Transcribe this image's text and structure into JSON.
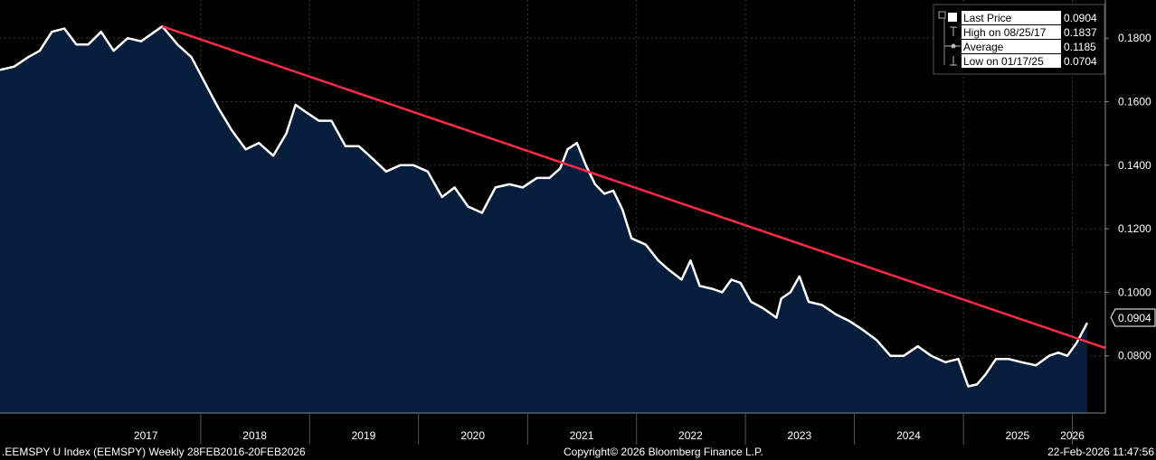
{
  "footer": {
    "left": ".EEMSPY U Index (EEMSPY) Weekly 28FEB2016-20FEB2026",
    "center": "Copyright© 2026 Bloomberg Finance L.P.",
    "right": "22-Feb-2026 11:47:56"
  },
  "legend": [
    {
      "label": "Last Price",
      "value": "0.0904",
      "marker": "filled-square"
    },
    {
      "label": "High on 08/25/17",
      "value": "0.1837",
      "marker": "high-marker"
    },
    {
      "label": "Average",
      "value": "0.1185",
      "marker": "average-marker"
    },
    {
      "label": "Low on 01/17/25",
      "value": "0.0704",
      "marker": "low-marker"
    }
  ],
  "last_price_tag": "0.0904",
  "colors": {
    "background": "#000000",
    "area_fill": "#061e3c",
    "price_line": "#ffffff",
    "trend_line": "#ff2a48",
    "grid": "#3a3a3a",
    "axis": "#888888"
  },
  "chart_data": {
    "type": "area",
    "title": "",
    "xlabel": "",
    "ylabel": "",
    "x_range": [
      "2016-02-28",
      "2026-02-20"
    ],
    "ylim": [
      0.062,
      0.192
    ],
    "y_ticks": [
      0.08,
      0.1,
      0.12,
      0.14,
      0.16,
      0.18
    ],
    "y_tick_labels": [
      "0.0800",
      "0.1000",
      "0.1200",
      "0.1400",
      "0.1600",
      "0.1800"
    ],
    "x_tick_labels": [
      "2017",
      "2018",
      "2019",
      "2020",
      "2021",
      "2022",
      "2023",
      "2024",
      "2025",
      "2026"
    ],
    "x_tick_positions": [
      "2017-07-01",
      "2018-07-01",
      "2019-07-01",
      "2020-07-01",
      "2021-07-01",
      "2022-07-01",
      "2023-07-01",
      "2024-07-01",
      "2025-07-01",
      "2026-01-01"
    ],
    "year_boundaries": [
      "2018-01-01",
      "2019-01-01",
      "2020-01-01",
      "2021-01-01",
      "2022-01-01",
      "2023-01-01",
      "2024-01-01",
      "2025-01-01",
      "2026-01-01"
    ],
    "grid": true,
    "legend_position": "top-right",
    "series": [
      {
        "name": "Last Price",
        "points": [
          [
            "2016-02-28",
            0.17
          ],
          [
            "2016-04-15",
            0.171
          ],
          [
            "2016-06-01",
            0.174
          ],
          [
            "2016-07-10",
            0.176
          ],
          [
            "2016-08-20",
            0.182
          ],
          [
            "2016-10-01",
            0.183
          ],
          [
            "2016-11-10",
            0.178
          ],
          [
            "2016-12-20",
            0.178
          ],
          [
            "2017-02-01",
            0.182
          ],
          [
            "2017-03-15",
            0.176
          ],
          [
            "2017-05-01",
            0.18
          ],
          [
            "2017-06-15",
            0.179
          ],
          [
            "2017-08-25",
            0.1837
          ],
          [
            "2017-10-15",
            0.178
          ],
          [
            "2017-12-01",
            0.174
          ],
          [
            "2018-01-15",
            0.166
          ],
          [
            "2018-03-01",
            0.158
          ],
          [
            "2018-04-15",
            0.151
          ],
          [
            "2018-06-01",
            0.145
          ],
          [
            "2018-07-15",
            0.147
          ],
          [
            "2018-09-01",
            0.143
          ],
          [
            "2018-10-15",
            0.15
          ],
          [
            "2018-11-15",
            0.159
          ],
          [
            "2018-12-15",
            0.157
          ],
          [
            "2019-02-01",
            0.154
          ],
          [
            "2019-03-15",
            0.154
          ],
          [
            "2019-05-01",
            0.146
          ],
          [
            "2019-06-15",
            0.146
          ],
          [
            "2019-08-01",
            0.142
          ],
          [
            "2019-09-15",
            0.138
          ],
          [
            "2019-11-01",
            0.14
          ],
          [
            "2019-12-15",
            0.14
          ],
          [
            "2020-02-01",
            0.138
          ],
          [
            "2020-03-20",
            0.13
          ],
          [
            "2020-05-01",
            0.133
          ],
          [
            "2020-06-15",
            0.127
          ],
          [
            "2020-08-01",
            0.125
          ],
          [
            "2020-09-15",
            0.133
          ],
          [
            "2020-11-01",
            0.134
          ],
          [
            "2020-12-15",
            0.133
          ],
          [
            "2021-02-01",
            0.136
          ],
          [
            "2021-03-15",
            0.136
          ],
          [
            "2021-04-20",
            0.139
          ],
          [
            "2021-05-15",
            0.145
          ],
          [
            "2021-06-15",
            0.147
          ],
          [
            "2021-07-15",
            0.14
          ],
          [
            "2021-08-15",
            0.134
          ],
          [
            "2021-09-15",
            0.131
          ],
          [
            "2021-10-15",
            0.132
          ],
          [
            "2021-11-15",
            0.126
          ],
          [
            "2021-12-15",
            0.117
          ],
          [
            "2022-02-01",
            0.115
          ],
          [
            "2022-03-15",
            0.11
          ],
          [
            "2022-04-20",
            0.107
          ],
          [
            "2022-06-01",
            0.104
          ],
          [
            "2022-07-01",
            0.11
          ],
          [
            "2022-08-01",
            0.102
          ],
          [
            "2022-09-15",
            0.101
          ],
          [
            "2022-10-15",
            0.1
          ],
          [
            "2022-11-15",
            0.104
          ],
          [
            "2022-12-15",
            0.103
          ],
          [
            "2023-01-20",
            0.097
          ],
          [
            "2023-03-01",
            0.095
          ],
          [
            "2023-04-15",
            0.092
          ],
          [
            "2023-05-01",
            0.098
          ],
          [
            "2023-06-01",
            0.1
          ],
          [
            "2023-07-01",
            0.105
          ],
          [
            "2023-08-01",
            0.097
          ],
          [
            "2023-09-15",
            0.096
          ],
          [
            "2023-11-01",
            0.093
          ],
          [
            "2023-12-15",
            0.091
          ],
          [
            "2024-02-01",
            0.088
          ],
          [
            "2024-03-15",
            0.085
          ],
          [
            "2024-05-01",
            0.08
          ],
          [
            "2024-06-15",
            0.08
          ],
          [
            "2024-08-01",
            0.083
          ],
          [
            "2024-09-15",
            0.08
          ],
          [
            "2024-11-01",
            0.078
          ],
          [
            "2024-12-15",
            0.079
          ],
          [
            "2025-01-17",
            0.0704
          ],
          [
            "2025-02-15",
            0.071
          ],
          [
            "2025-03-15",
            0.074
          ],
          [
            "2025-04-20",
            0.079
          ],
          [
            "2025-06-01",
            0.079
          ],
          [
            "2025-07-15",
            0.078
          ],
          [
            "2025-09-01",
            0.077
          ],
          [
            "2025-10-15",
            0.08
          ],
          [
            "2025-11-15",
            0.081
          ],
          [
            "2025-12-15",
            0.08
          ],
          [
            "2026-01-15",
            0.084
          ],
          [
            "2026-02-01",
            0.087
          ],
          [
            "2026-02-20",
            0.0904
          ]
        ]
      },
      {
        "name": "",
        "points": [
          [
            "2017-08-25",
            0.1837
          ],
          [
            "2026-02-20",
            0.0844
          ]
        ]
      }
    ]
  }
}
